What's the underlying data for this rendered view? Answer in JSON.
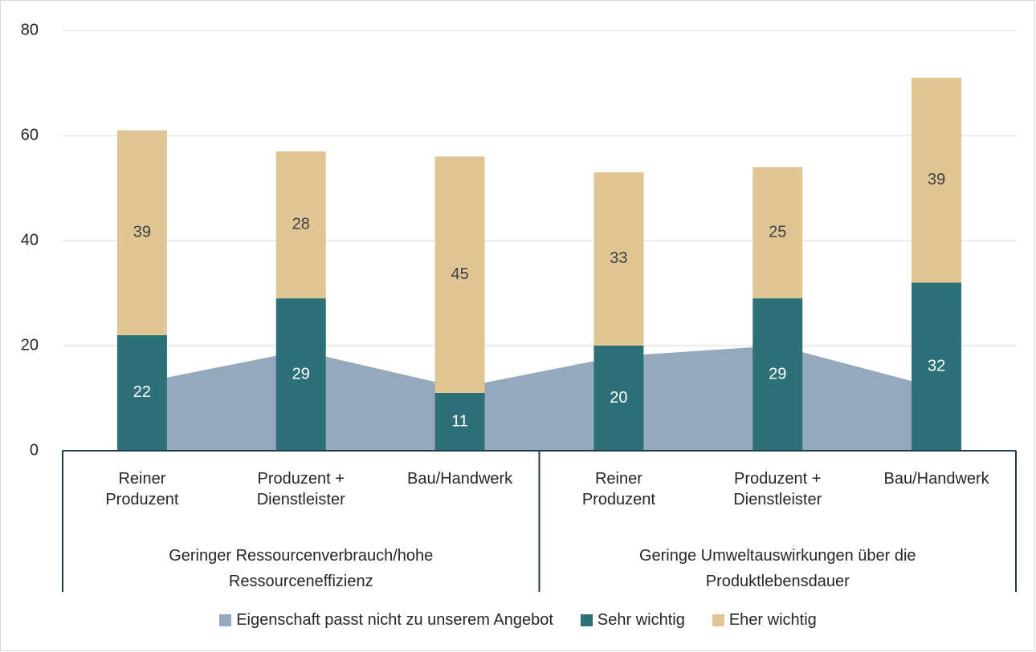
{
  "chart_data": {
    "type": "bar",
    "categories": [
      "Reiner Produzent",
      "Produzent + Dienstleister",
      "Bau/Handwerk",
      "Reiner Produzent",
      "Produzent + Dienstleister",
      "Bau/Handwerk"
    ],
    "category_groups": [
      "Geringer Ressourcenverbrauch/hohe Ressourceneffizienz",
      "Geringe Umweltauswirkungen über die Produktlebensdauer"
    ],
    "series": [
      {
        "name": "Eigenschaft passt nicht zu unserem Angebot",
        "type": "area",
        "color": "#94a9bc",
        "values": [
          13,
          19,
          12,
          18,
          20,
          12
        ]
      },
      {
        "name": "Sehr wichtig",
        "type": "bar",
        "color": "#2e7078",
        "values": [
          22,
          29,
          11,
          20,
          29,
          32
        ]
      },
      {
        "name": "Eher wichtig",
        "type": "bar",
        "color": "#e0c595",
        "values": [
          39,
          28,
          45,
          33,
          25,
          39
        ]
      }
    ],
    "ylim": [
      0,
      80
    ],
    "yticks": [
      0,
      20,
      40,
      60,
      80
    ],
    "grid": true,
    "legend": "bottom"
  }
}
